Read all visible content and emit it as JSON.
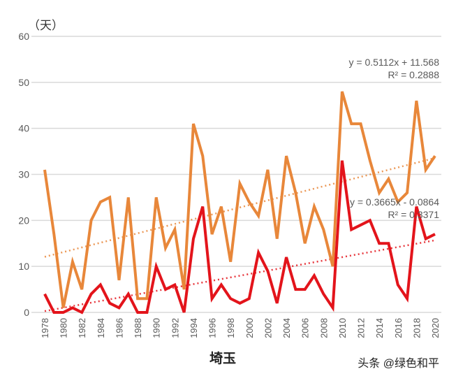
{
  "chart_data": {
    "type": "line",
    "title": "埼玉",
    "ylabel": "（天）",
    "xlabel": "",
    "ylim": [
      0,
      60
    ],
    "yticks": [
      0,
      10,
      20,
      30,
      40,
      50,
      60
    ],
    "x": [
      1978,
      1979,
      1980,
      1981,
      1982,
      1983,
      1984,
      1985,
      1986,
      1987,
      1988,
      1989,
      1990,
      1991,
      1992,
      1993,
      1994,
      1995,
      1996,
      1997,
      1998,
      1999,
      2000,
      2001,
      2002,
      2003,
      2004,
      2005,
      2006,
      2007,
      2008,
      2009,
      2010,
      2011,
      2012,
      2013,
      2014,
      2015,
      2016,
      2017,
      2018,
      2019,
      2020
    ],
    "xticks": [
      1978,
      1980,
      1982,
      1984,
      1986,
      1988,
      1990,
      1992,
      1994,
      1996,
      1998,
      2000,
      2002,
      2004,
      2006,
      2008,
      2010,
      2012,
      2014,
      2016,
      2018,
      2020
    ],
    "grid": true,
    "series": [
      {
        "name": "orange",
        "color": "#E8873A",
        "values": [
          31,
          17,
          1,
          11,
          5,
          20,
          24,
          25,
          7,
          25,
          3,
          3,
          25,
          14,
          18,
          5,
          41,
          34,
          17,
          23,
          11,
          28,
          24,
          21,
          31,
          16,
          34,
          26,
          15,
          23,
          18,
          10,
          48,
          41,
          41,
          33,
          26,
          29,
          24,
          26,
          46,
          31,
          34
        ],
        "trend": {
          "slope": 0.5112,
          "intercept": 11.568,
          "equation": "y = 0.5112x + 11.568",
          "r2": "R² = 0.2888"
        }
      },
      {
        "name": "red",
        "color": "#E3141B",
        "values": [
          4,
          0,
          0,
          1,
          0,
          4,
          6,
          2,
          1,
          4,
          0,
          0,
          10,
          5,
          6,
          0,
          16,
          23,
          3,
          6,
          3,
          2,
          3,
          13,
          9,
          2,
          12,
          5,
          5,
          8,
          4,
          1,
          33,
          18,
          19,
          20,
          15,
          15,
          6,
          3,
          23,
          16,
          17
        ],
        "trend": {
          "slope": 0.3665,
          "intercept": -0.0864,
          "equation": "y = 0.3665x - 0.0864",
          "r2": "R² = 0.3371"
        }
      }
    ]
  },
  "watermark": "头条 @绿色和平"
}
